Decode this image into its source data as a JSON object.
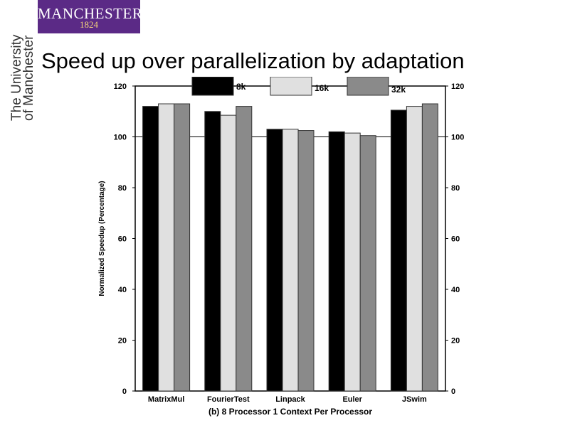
{
  "logo": {
    "name": "MANCHESTER",
    "year": "1824"
  },
  "side_text": {
    "line1": "The University",
    "line2": "of Manchester"
  },
  "slide_title": "Speed up over parallelization by adaptation",
  "chart_data": {
    "type": "bar",
    "categories": [
      "MatrixMul",
      "FourierTest",
      "Linpack",
      "Euler",
      "JSwim"
    ],
    "series": [
      {
        "name": "8k",
        "values": [
          112,
          110,
          103,
          102,
          110.5
        ],
        "color": "#000000"
      },
      {
        "name": "16k",
        "values": [
          113,
          108.5,
          103,
          101.5,
          112
        ],
        "color": "#e0e0e0"
      },
      {
        "name": "32k",
        "values": [
          113,
          112,
          102.5,
          100.5,
          113
        ],
        "color": "#8a8a8a"
      }
    ],
    "ylabel": "Normalized Speedup (Percentage)",
    "xlabel": "(b) 8 Processor 1 Context Per Processor",
    "ylim": [
      0,
      120
    ],
    "yticks": [
      0,
      20,
      40,
      60,
      80,
      100,
      120
    ],
    "reference_line": 100,
    "legend_position": "top"
  }
}
